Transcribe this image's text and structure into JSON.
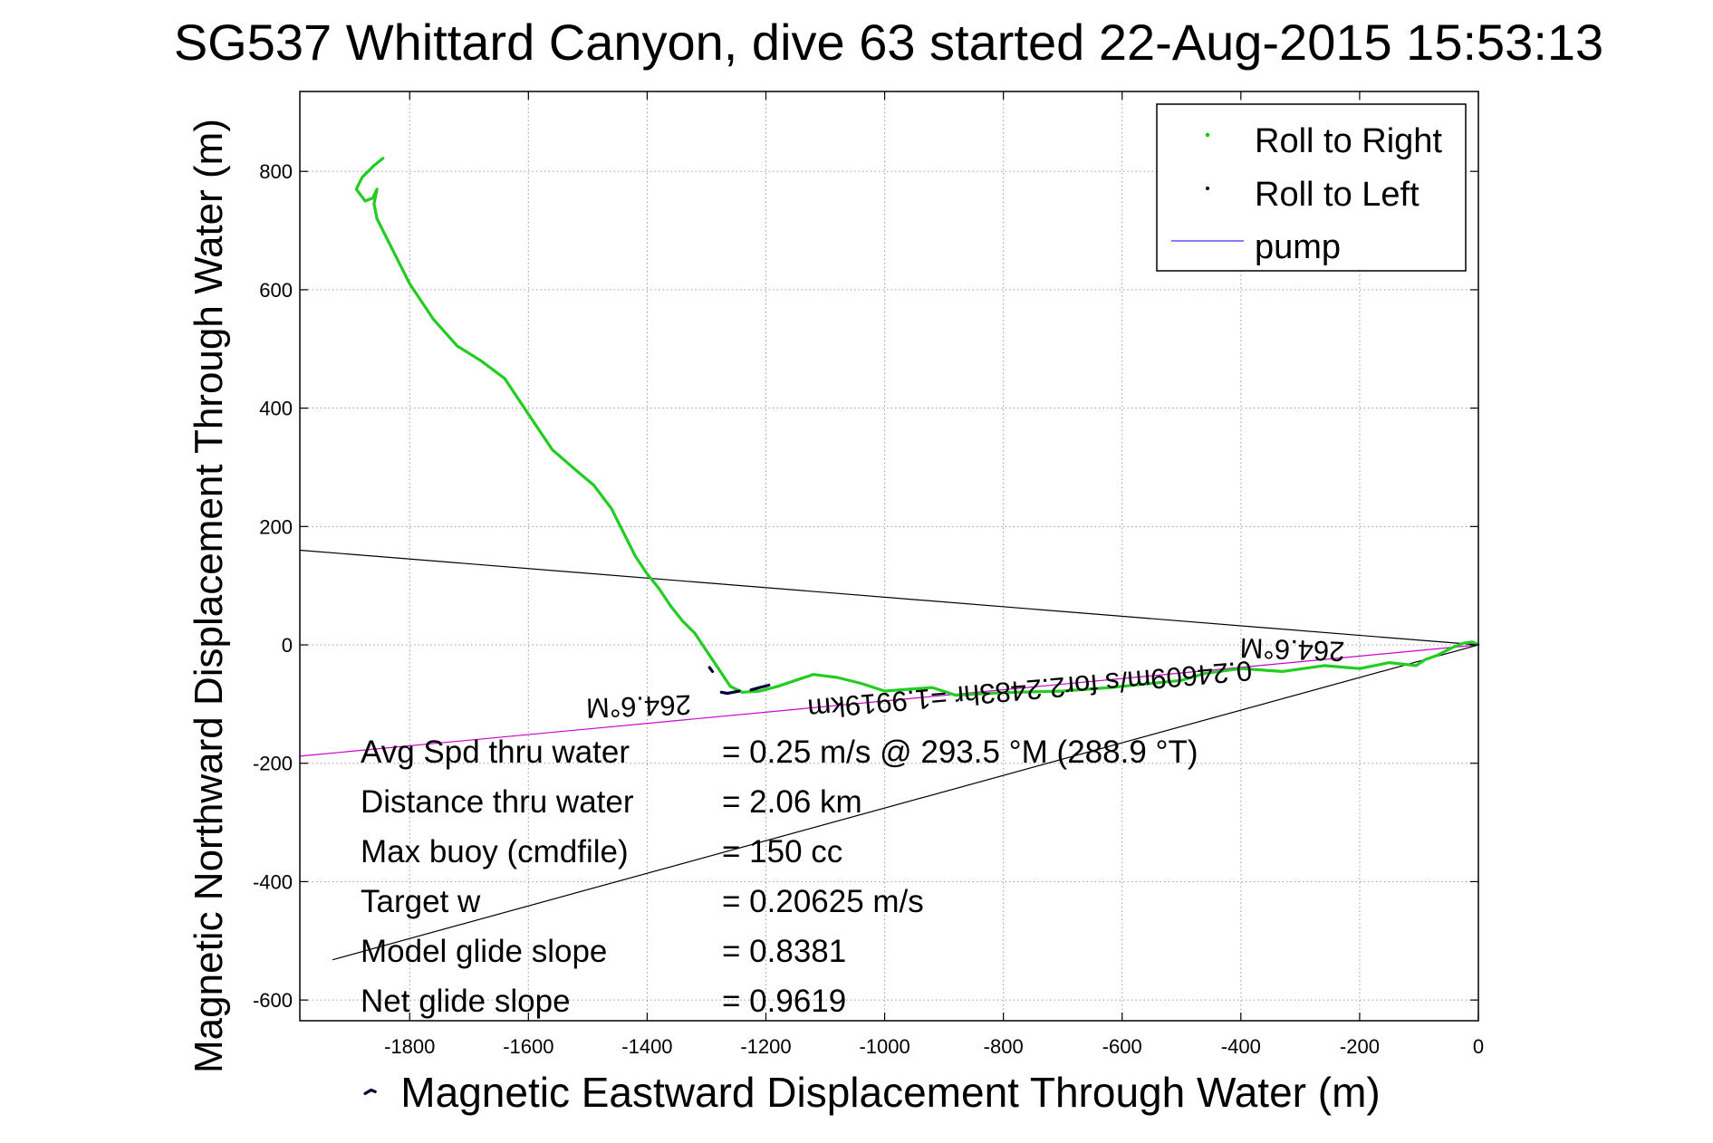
{
  "chart_data": {
    "type": "line",
    "title": "SG537 Whittard Canyon, dive 63 started 22-Aug-2015 15:53:13",
    "xlabel": "Magnetic Eastward Displacement Through Water (m)",
    "ylabel": "Magnetic Northward Displacement Through Water (m)",
    "xlim": [
      -1985,
      0
    ],
    "ylim": [
      -635,
      935
    ],
    "x_ticks": [
      -1800,
      -1600,
      -1400,
      -1200,
      -1000,
      -800,
      -600,
      -400,
      -200,
      0
    ],
    "y_ticks": [
      -600,
      -400,
      -200,
      0,
      200,
      400,
      600,
      800
    ],
    "grid": true,
    "legend_position": "top-right",
    "legend": [
      {
        "label": "Roll to Right",
        "color": "#00cc00",
        "marker": "dot"
      },
      {
        "label": "Roll to Left",
        "color": "#000000",
        "marker": "dot"
      },
      {
        "label": "pump",
        "color": "#3333ff",
        "marker": "line"
      }
    ],
    "series": [
      {
        "name": "Roll to Right",
        "color": "#22cc22",
        "x": [
          0,
          -10,
          -25,
          -45,
          -70,
          -90,
          -105,
          -150,
          -200,
          -260,
          -330,
          -400,
          -460,
          -500,
          -550,
          -620,
          -700,
          -780,
          -830,
          -880,
          -920,
          -960,
          -1000,
          -1040,
          -1080,
          -1120,
          -1150,
          -1180,
          -1210,
          -1240,
          -1260,
          -1280,
          -1300,
          -1320,
          -1340,
          -1360,
          -1380,
          -1400,
          -1420,
          -1440,
          -1460,
          -1490,
          -1520,
          -1560,
          -1600,
          -1640,
          -1680,
          -1720,
          -1760,
          -1800,
          -1820,
          -1840,
          -1855,
          -1860,
          -1858,
          -1855,
          -1862,
          -1875,
          -1890,
          -1880,
          -1860,
          -1845
        ],
        "y": [
          0,
          5,
          3,
          -5,
          -18,
          -25,
          -35,
          -30,
          -40,
          -35,
          -45,
          -40,
          -48,
          -60,
          -65,
          -72,
          -78,
          -80,
          -82,
          -85,
          -72,
          -75,
          -78,
          -65,
          -55,
          -50,
          -60,
          -70,
          -78,
          -80,
          -70,
          -40,
          -10,
          20,
          40,
          65,
          95,
          120,
          150,
          190,
          230,
          270,
          295,
          330,
          390,
          450,
          480,
          505,
          550,
          610,
          650,
          690,
          720,
          745,
          755,
          770,
          755,
          750,
          770,
          790,
          810,
          822
        ]
      },
      {
        "name": "Roll to Left",
        "color": "#000033",
        "segments": [
          {
            "x": [
              -1245,
              -1265,
              -1275
            ],
            "y": [
              -78,
              -82,
              -80
            ]
          },
          {
            "x": [
              -1195,
              -1210,
              -1225
            ],
            "y": [
              -68,
              -72,
              -76
            ]
          },
          {
            "x": [
              -1290,
              -1295
            ],
            "y": [
              -45,
              -38
            ]
          },
          {
            "x": [
              -1858,
              -1865,
              -1875
            ],
            "y": [
              -755,
              -752,
              -758
            ]
          }
        ]
      }
    ],
    "reference_lines": [
      {
        "name": "mean heading",
        "color": "#cc00cc",
        "x": [
          0,
          -1985
        ],
        "y": [
          0,
          -188
        ]
      },
      {
        "name": "upper",
        "color": "#000000",
        "x": [
          0,
          -1985
        ],
        "y": [
          0,
          160
        ]
      },
      {
        "name": "lower",
        "color": "#000000",
        "x": [
          0,
          -1930
        ],
        "y": [
          0,
          -532
        ]
      }
    ],
    "rotated_labels": [
      {
        "text": "264.6°M",
        "x": -1415,
        "y": -88,
        "angle": 178
      },
      {
        "text": "264.6°M",
        "x": -313,
        "y": 8,
        "angle": 182
      },
      {
        "text": "0.24609m/s for2.2483hr =1.9919km",
        "x": -757,
        "y": -60,
        "angle": 175
      }
    ],
    "annotations": [
      {
        "label": "Avg Spd thru water",
        "value": "=  0.25 m/s @ 293.5 °M (288.9 °T)"
      },
      {
        "label": "Distance thru water",
        "value": "=  2.06 km"
      },
      {
        "label": "Max buoy (cmdfile)",
        "value": "= 150 cc"
      },
      {
        "label": "Target w",
        "value": "= 0.20625 m/s"
      },
      {
        "label": "Model glide slope",
        "value": "= 0.8381"
      },
      {
        "label": "Net glide slope",
        "value": "= 0.9619"
      }
    ]
  }
}
